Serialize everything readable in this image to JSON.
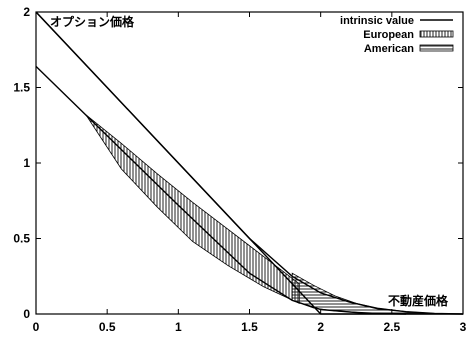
{
  "chart_data": {
    "type": "line",
    "title": "",
    "xlabel": "",
    "ylabel": "",
    "xlim": [
      0,
      3
    ],
    "ylim": [
      0,
      2
    ],
    "x_ticks": [
      "0",
      "0.5",
      "1",
      "1.5",
      "2",
      "2.5",
      "3"
    ],
    "y_ticks": [
      "0",
      "0.5",
      "1",
      "1.5",
      "2"
    ],
    "grid": false,
    "legend_position": "top-right",
    "annotations": {
      "y_axis_label": "オプション価格",
      "x_axis_label": "不動産価格"
    },
    "series": [
      {
        "name": "intrinsic value",
        "style": "solid",
        "points": [
          [
            0,
            2.0
          ],
          [
            2.0,
            0
          ],
          [
            3,
            0
          ]
        ]
      },
      {
        "name": "European",
        "style": "solid",
        "points": [
          [
            0,
            1.64
          ],
          [
            0.5,
            1.18
          ],
          [
            1.0,
            0.72
          ],
          [
            1.5,
            0.27
          ],
          [
            1.8,
            0.09
          ],
          [
            2.0,
            0.03
          ],
          [
            2.3,
            0.005
          ],
          [
            2.6,
            0.0
          ]
        ]
      },
      {
        "name": "American",
        "style": "solid",
        "points": [
          [
            0,
            2.0
          ],
          [
            0.5,
            1.5
          ],
          [
            1.0,
            1.0
          ],
          [
            1.5,
            0.5
          ],
          [
            1.8,
            0.25
          ],
          [
            2.0,
            0.14
          ],
          [
            2.2,
            0.08
          ],
          [
            2.4,
            0.035
          ],
          [
            2.6,
            0.015
          ],
          [
            2.8,
            0.003
          ],
          [
            3.0,
            0.0
          ]
        ]
      }
    ],
    "shaded_bands": [
      {
        "name": "European",
        "pattern": "dense-hatch",
        "upper": [
          [
            0.35,
            1.32
          ],
          [
            0.6,
            1.13
          ],
          [
            0.85,
            0.93
          ],
          [
            1.1,
            0.74
          ],
          [
            1.35,
            0.56
          ],
          [
            1.6,
            0.38
          ],
          [
            1.85,
            0.2
          ]
        ],
        "lower": [
          [
            1.85,
            0.07
          ],
          [
            1.6,
            0.18
          ],
          [
            1.35,
            0.32
          ],
          [
            1.1,
            0.48
          ],
          [
            0.85,
            0.71
          ],
          [
            0.6,
            0.96
          ],
          [
            0.35,
            1.32
          ]
        ]
      },
      {
        "name": "American",
        "pattern": "hatch",
        "upper": [
          [
            1.8,
            0.27
          ],
          [
            1.95,
            0.19
          ],
          [
            2.1,
            0.12
          ],
          [
            2.25,
            0.07
          ],
          [
            2.4,
            0.04
          ],
          [
            2.6,
            0.016
          ],
          [
            2.8,
            0.003
          ]
        ],
        "lower": [
          [
            2.8,
            0.0
          ],
          [
            2.6,
            0.0
          ],
          [
            2.4,
            0.005
          ],
          [
            2.25,
            0.012
          ],
          [
            2.1,
            0.02
          ],
          [
            1.95,
            0.04
          ],
          [
            1.8,
            0.09
          ]
        ]
      }
    ],
    "colors": {
      "line": "#000000",
      "background": "#ffffff",
      "hatch_european": "#333333",
      "hatch_american": "#555555"
    }
  }
}
